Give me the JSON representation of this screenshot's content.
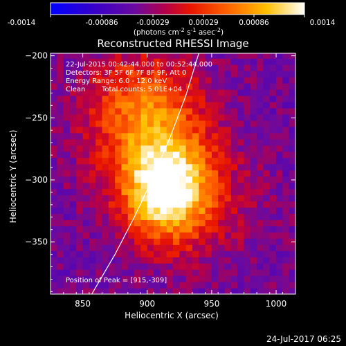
{
  "chart_data": {
    "type": "heatmap",
    "title": "Reconstructed RHESSI Image",
    "xlabel": "Heliocentric X (arcsec)",
    "ylabel": "Heliocentric Y (arcsec)",
    "xlim": [
      825,
      1015
    ],
    "ylim": [
      -392,
      -198
    ],
    "x_ticks": [
      850,
      900,
      950,
      1000
    ],
    "y_ticks": [
      -200,
      -250,
      -300,
      -350
    ],
    "colorbar": {
      "range": [
        -0.0014,
        0.0014
      ],
      "tick_labels": [
        "-0.0014",
        "-0.00086",
        "-0.00029",
        "0.00029",
        "0.00086",
        "0.0014"
      ],
      "unit_label": "(photons cm",
      "unit_exp1": "-2",
      "unit_mid": " s",
      "unit_exp2": "-1",
      "unit_tail": " asec",
      "unit_exp3": "-2",
      "unit_close": ")"
    },
    "annotations": {
      "time_range": "22-Jul-2015 00:42:44.000 to 00:52:44.000",
      "detectors": "Detectors: 3F 5F 6F 7F 8F 9F, Att 0",
      "energy_range": "Energy Range: 6.0 - 12.0 keV",
      "clean_label": "Clean",
      "total_counts": "Total counts: 5.01E+04",
      "peak_position": "Position of Peak = [915,-309]"
    },
    "peak": {
      "x": 915,
      "y": -309
    },
    "limb_curve": [
      [
        857,
        -392
      ],
      [
        875,
        -360
      ],
      [
        890,
        -330
      ],
      [
        905,
        -297
      ],
      [
        918,
        -265
      ],
      [
        930,
        -232
      ],
      [
        940,
        -198
      ]
    ],
    "source_components": [
      {
        "x": 915,
        "y": -309,
        "amplitude": 0.0015,
        "sigma_x": 22,
        "sigma_y": 26
      },
      {
        "x": 905,
        "y": -268,
        "amplitude": 0.00085,
        "sigma_x": 32,
        "sigma_y": 36
      },
      {
        "x": 893,
        "y": -232,
        "amplitude": 0.00055,
        "sigma_x": 30,
        "sigma_y": 28
      },
      {
        "x": 935,
        "y": -320,
        "amplitude": 0.0004,
        "sigma_x": 38,
        "sigma_y": 32
      }
    ],
    "background_level": -0.00045
  },
  "footer": {
    "timestamp": "24-Jul-2017 06:25"
  }
}
